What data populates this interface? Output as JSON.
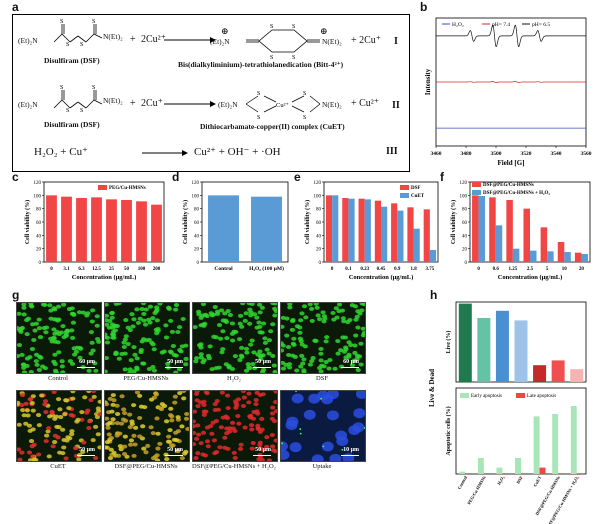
{
  "panels": {
    "a": "a",
    "b": "b",
    "c": "c",
    "d": "d",
    "e": "e",
    "f": "f",
    "g": "g",
    "h": "h"
  },
  "scheme": {
    "r1": {
      "reactant_formula_left": "(Et)₂N",
      "reactant_formula_right": "N(Et)₂",
      "reactant_name": "Disulfiram (DSF)",
      "plus": "+",
      "reagent": "2Cu²⁺",
      "prod_left": "(Et)₂N",
      "prod_right": "N(Et)₂",
      "byproduct": "+ 2Cu⁺",
      "product_name": "Bis(dialkyliminium)-tetrathiolanedication (Bitt-4²⁺)",
      "roman": "I"
    },
    "r2": {
      "reactant_formula_left": "(Et)₂N",
      "reactant_formula_right": "N(Et)₂",
      "reactant_name": "Disulfiram (DSF)",
      "plus": "+",
      "reagent": "2Cu⁺",
      "prod_left": "(Et)₂N",
      "prod_right": "N(Et)₂",
      "cu_label": "Cu²⁺",
      "byproduct": "+ Cu²⁺",
      "product_name": "Dithiocarbamate-copper(II) complex (CuET)",
      "roman": "II"
    },
    "r3": {
      "equation_left": "H₂O₂  +  Cu⁺",
      "equation_right": "Cu²⁺  +  OH⁻  +  ·OH",
      "roman": "III"
    },
    "atom_S": "S",
    "charge_plus": "⊕"
  },
  "chart_data": [
    {
      "id": "b",
      "type": "line",
      "title": "",
      "xlabel": "Field [G]",
      "ylabel": "Intensity",
      "xticks": [
        "3460",
        "3480",
        "3500",
        "3520",
        "3540",
        "3560"
      ],
      "xlim": [
        3460,
        3560
      ],
      "legend": [
        "H₂O₂",
        "pH= 7.4",
        "pH= 6.5"
      ],
      "series": [
        {
          "name": "H₂O₂",
          "color": "#3b4cc0",
          "baseline": -1.0,
          "peak_amplitude": 0
        },
        {
          "name": "pH= 7.4",
          "color": "#d62728",
          "baseline": 0.0,
          "peak_amplitude": 0.03
        },
        {
          "name": "pH= 6.5",
          "color": "#111111",
          "baseline": 1.0,
          "peak_amplitude": 0.55
        }
      ],
      "peak_positions": [
        3484,
        3499,
        3514,
        3529
      ],
      "peak_ratio": [
        1,
        2,
        2,
        1
      ]
    },
    {
      "id": "c",
      "type": "bar",
      "title": "",
      "xlabel": "Concentration (μg/mL)",
      "ylabel": "Cell viability (%)",
      "categories": [
        "0",
        "3.1",
        "6.3",
        "12.5",
        "25",
        "50",
        "100",
        "200"
      ],
      "series": [
        {
          "name": "PEG/Cu-HMSNs",
          "color": "#f04646",
          "values": [
            100,
            98,
            96,
            97,
            94,
            93,
            91,
            86
          ]
        }
      ],
      "ylim": [
        0,
        120
      ],
      "yticks": [
        "0",
        "20",
        "40",
        "60",
        "80",
        "100",
        "120"
      ]
    },
    {
      "id": "d",
      "type": "bar",
      "title": "",
      "xlabel": "",
      "ylabel": "Cell viability (%)",
      "categories": [
        "Control",
        "H₂O₂ (100 μM)"
      ],
      "series": [
        {
          "name": "viability",
          "color": "#5b9bd5",
          "values": [
            100,
            98
          ]
        }
      ],
      "ylim": [
        0,
        120
      ],
      "yticks": [
        "0",
        "20",
        "40",
        "60",
        "80",
        "100",
        "120"
      ]
    },
    {
      "id": "e",
      "type": "bar",
      "title": "",
      "xlabel": "Concentration (μg/mL)",
      "ylabel": "Cell viability (%)",
      "categories": [
        "0",
        "0.1",
        "0.23",
        "0.45",
        "0.9",
        "1.8",
        "3.75"
      ],
      "series": [
        {
          "name": "DSF",
          "color": "#f04646",
          "values": [
            100,
            96,
            95,
            92,
            88,
            82,
            79
          ]
        },
        {
          "name": "CuET",
          "color": "#5b9bd5",
          "values": [
            100,
            95,
            94,
            83,
            77,
            50,
            18
          ]
        }
      ],
      "ylim": [
        0,
        120
      ],
      "yticks": [
        "0",
        "20",
        "40",
        "60",
        "80",
        "100",
        "120"
      ]
    },
    {
      "id": "f",
      "type": "bar",
      "title": "",
      "xlabel": "Concentration (μg/mL)",
      "ylabel": "Cell viability (%)",
      "categories": [
        "0",
        "0.6",
        "1.25",
        "2.5",
        "5",
        "10",
        "20"
      ],
      "series": [
        {
          "name": "DSF@PEG/Cu-HMSNs",
          "color": "#f04646",
          "values": [
            100,
            97,
            93,
            80,
            52,
            30,
            14
          ]
        },
        {
          "name": "DSF@PEG/Cu-HMSNs + H₂O₂",
          "color": "#5b9bd5",
          "values": [
            99,
            55,
            20,
            17,
            16,
            15,
            12
          ]
        }
      ],
      "ylim": [
        0,
        120
      ],
      "yticks": [
        "0",
        "20",
        "40",
        "60",
        "80",
        "100",
        "120"
      ]
    },
    {
      "id": "h-top",
      "type": "bar",
      "title": "",
      "xlabel": "",
      "ylabel": "Live (%)",
      "categories": [
        "Control",
        "PEG/Cu-HMSNs",
        "H₂O₂",
        "DSF",
        "CuET",
        "DSF@PEG/Cu-HMSNs",
        "DSF@PEG/Cu-HMSNs + H₂O₂"
      ],
      "values": [
        98,
        80,
        89,
        77,
        21,
        27,
        16
      ],
      "colors": [
        "#1f7a4d",
        "#66c2a4",
        "#4a8fcf",
        "#9ec3e8",
        "#c42a2a",
        "#ef4f4f",
        "#f6b3b3"
      ],
      "ylim": [
        0,
        100
      ]
    },
    {
      "id": "h-bottom",
      "type": "bar",
      "title": "",
      "xlabel": "",
      "ylabel": "Apoptotic cells (%)",
      "categories": [
        "Control",
        "PEG/Cu-HMSNs",
        "H₂O₂",
        "DSF",
        "CuET",
        "DSF@PEG/Cu-HMSNs",
        "DSF@PEG/Cu-HMSNs + H₂O₂"
      ],
      "series": [
        {
          "name": "Early apoptosis",
          "color": "#a8e6b8",
          "values": [
            3,
            20,
            8,
            20,
            72,
            75,
            85
          ]
        },
        {
          "name": "Late apoptosis",
          "color": "#f04646",
          "values": [
            1,
            1,
            1,
            1,
            8,
            1,
            1
          ]
        }
      ],
      "ylim": [
        0,
        100
      ]
    }
  ],
  "h_shared_ylabel": "Live & Dead",
  "micrographs": {
    "row1": [
      {
        "caption": "Control",
        "scale": "60 μm",
        "color": "#2fd62f"
      },
      {
        "caption": "PEG/Cu-HMSNs",
        "scale": "50 μm",
        "color": "#2fd62f"
      },
      {
        "caption": "H₂O₂",
        "scale": "50 μm",
        "color": "#2fd62f"
      },
      {
        "caption": "DSF",
        "scale": "60 μm",
        "color": "#2fd62f"
      }
    ],
    "row2": [
      {
        "caption": "CuET",
        "scale": "50 μm",
        "color": "#d6c52f"
      },
      {
        "caption": "DSF@PEG/Cu-HMSNs",
        "scale": "50 μm",
        "color": "#c7a02a"
      },
      {
        "caption": "DSF@PEG/Cu-HMSNs + H₂O₂",
        "scale": "50 μm",
        "color": "#e02a2a"
      },
      {
        "caption": "Uptake",
        "scale": "10 μm",
        "color": "#2a4fe0"
      }
    ]
  }
}
